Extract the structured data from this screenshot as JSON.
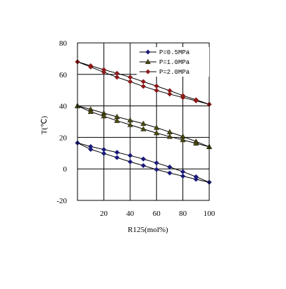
{
  "chart_data": {
    "type": "line",
    "xlabel": "R125(mol%)",
    "ylabel": "T(℃)",
    "xlim": [
      0,
      100
    ],
    "ylim": [
      -20,
      80
    ],
    "xticks": [
      20,
      40,
      60,
      80,
      100
    ],
    "xtick_labels": [
      "20",
      "40",
      "60",
      "80",
      "100"
    ],
    "yticks": [
      -20,
      0,
      20,
      40,
      60,
      80
    ],
    "ytick_labels": [
      "-20",
      "0",
      "20",
      "40",
      "60",
      "80"
    ],
    "grid": true,
    "legend_position": "top-right",
    "series": [
      {
        "name": "P=0.5MPa",
        "color": "#1a1a7a",
        "marker": "diamond",
        "curves": [
          {
            "x": [
              0,
              10,
              20,
              30,
              40,
              50,
              60,
              70,
              80,
              90,
              100
            ],
            "y": [
              16.5,
              14.2,
              12.3,
              10.5,
              8.5,
              6.3,
              3.8,
              1.2,
              -1.8,
              -5.0,
              -8.5
            ]
          },
          {
            "x": [
              0,
              10,
              20,
              30,
              40,
              50,
              60,
              70,
              80,
              90,
              100
            ],
            "y": [
              16.5,
              12.4,
              9.8,
              7.2,
              4.5,
              2.1,
              -0.4,
              -2.6,
              -4.6,
              -6.6,
              -8.5
            ]
          }
        ]
      },
      {
        "name": "P=1.0MPa",
        "color": "#4a4a10",
        "marker": "triangle",
        "curves": [
          {
            "x": [
              0,
              10,
              20,
              30,
              40,
              50,
              60,
              70,
              80,
              90,
              100
            ],
            "y": [
              40.0,
              37.8,
              35.4,
              33.1,
              30.9,
              28.7,
              26.2,
              23.4,
              20.6,
              17.4,
              14.0
            ]
          },
          {
            "x": [
              0,
              10,
              20,
              30,
              40,
              50,
              60,
              70,
              80,
              90,
              100
            ],
            "y": [
              40.0,
              36.3,
              33.5,
              30.6,
              28.0,
              25.3,
              22.8,
              20.5,
              18.4,
              16.2,
              14.0
            ]
          }
        ]
      },
      {
        "name": "P=2.0MPa",
        "color": "#8b1a1a",
        "marker": "diamond",
        "curves": [
          {
            "x": [
              0,
              10,
              20,
              30,
              40,
              50,
              60,
              70,
              80,
              90,
              100
            ],
            "y": [
              68.0,
              65.5,
              63.0,
              60.7,
              58.2,
              55.4,
              52.6,
              49.7,
              46.5,
              43.9,
              41.0
            ]
          },
          {
            "x": [
              0,
              10,
              20,
              30,
              40,
              50,
              60,
              70,
              80,
              90,
              100
            ],
            "y": [
              68.0,
              64.7,
              61.4,
              58.2,
              55.4,
              52.4,
              49.8,
              47.5,
              45.3,
              43.2,
              41.0
            ]
          }
        ]
      }
    ]
  }
}
